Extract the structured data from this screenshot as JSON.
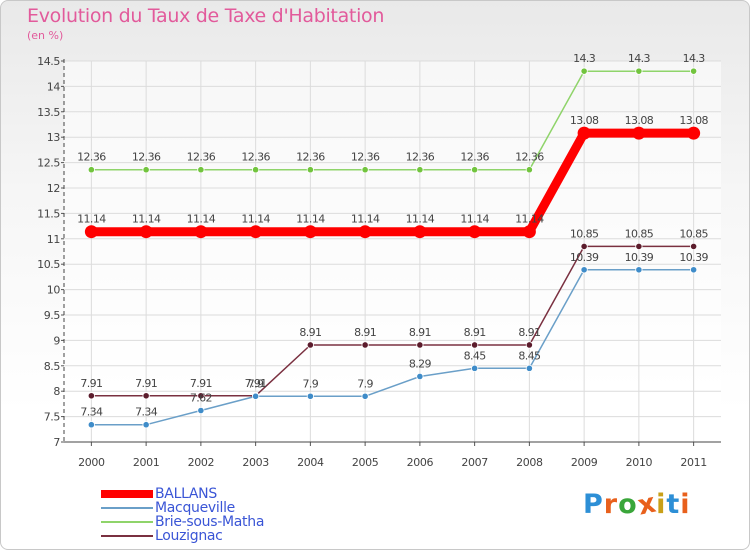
{
  "title": "Evolution du Taux de Taxe d'Habitation",
  "unit": "(en %)",
  "logo": {
    "text": "Proxiti",
    "colors": [
      "#2d8fd6",
      "#e8601c",
      "#3aa63a",
      "#e8601c",
      "#c9a018",
      "#2d8fd6",
      "#e8601c"
    ]
  },
  "chart_data": {
    "type": "line",
    "title": "Evolution du Taux de Taxe d'Habitation",
    "ylabel": "(en %)",
    "xlabel": "",
    "ylim": [
      7,
      14.5
    ],
    "yticks": [
      7,
      7.5,
      8,
      8.5,
      9,
      9.5,
      10,
      10.5,
      11,
      11.5,
      12,
      12.5,
      13,
      13.5,
      14,
      14.5
    ],
    "grid": true,
    "legend_position": "bottom-left",
    "x": [
      "2000",
      "2001",
      "2002",
      "2003",
      "2004",
      "2005",
      "2006",
      "2007",
      "2008",
      "2009",
      "2010",
      "2011"
    ],
    "series": [
      {
        "name": "BALLANS",
        "color": "#ff0000",
        "emphasis": true,
        "values": [
          11.14,
          11.14,
          11.14,
          11.14,
          11.14,
          11.14,
          11.14,
          11.14,
          11.14,
          13.08,
          13.08,
          13.08
        ],
        "labels": [
          "11.14",
          "11.14",
          "11.14",
          "11.14",
          "11.14",
          "11.14",
          "11.14",
          "11.14",
          "11.14",
          "13.08",
          "13.08",
          "13.08"
        ]
      },
      {
        "name": "Macqueville",
        "color": "#6a9fc8",
        "point_color": "#3f8cc9",
        "values": [
          7.34,
          7.34,
          7.62,
          7.9,
          7.9,
          7.9,
          8.29,
          8.45,
          8.45,
          10.39,
          10.39,
          10.39
        ],
        "labels": [
          "7.34",
          "7.34",
          "7.62",
          "7.9",
          "7.9",
          "7.9",
          "8.29",
          "8.45",
          "8.45",
          "10.39",
          "10.39",
          "10.39"
        ]
      },
      {
        "name": "Brie-sous-Matha",
        "color": "#8fd46a",
        "point_color": "#72c43e",
        "values": [
          12.36,
          12.36,
          12.36,
          12.36,
          12.36,
          12.36,
          12.36,
          12.36,
          12.36,
          14.3,
          14.3,
          14.3
        ],
        "labels": [
          "12.36",
          "12.36",
          "12.36",
          "12.36",
          "12.36",
          "12.36",
          "12.36",
          "12.36",
          "12.36",
          "14.3",
          "14.3",
          "14.3"
        ]
      },
      {
        "name": "Louzignac",
        "color": "#7a3040",
        "point_color": "#5c1c2c",
        "values": [
          7.91,
          7.91,
          7.91,
          7.91,
          8.91,
          8.91,
          8.91,
          8.91,
          8.91,
          10.85,
          10.85,
          10.85
        ],
        "labels": [
          "7.91",
          "7.91",
          "7.91",
          "7.91",
          "8.91",
          "8.91",
          "8.91",
          "8.91",
          "8.91",
          "10.85",
          "10.85",
          "10.85"
        ]
      }
    ]
  }
}
